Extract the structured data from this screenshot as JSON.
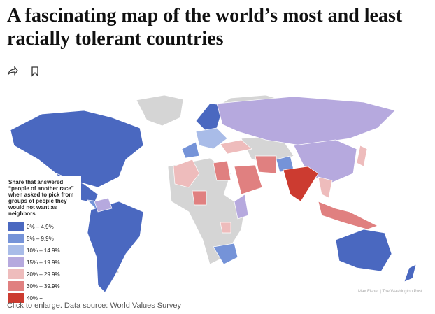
{
  "header": {
    "title": "A fascinating map of the world’s most and least racially tolerant countries"
  },
  "legend": {
    "title": "Share that answered “people of another race” when asked to pick from groups of people they would not want as neighbors",
    "items": [
      {
        "label": "0% – 4.9%",
        "color": "#4a68c0"
      },
      {
        "label": "5% – 9.9%",
        "color": "#7593d8"
      },
      {
        "label": "10% – 14.9%",
        "color": "#a9bce8"
      },
      {
        "label": "15% – 19.9%",
        "color": "#b6a9de"
      },
      {
        "label": "20% – 29.9%",
        "color": "#eebcbc"
      },
      {
        "label": "30% – 39.9%",
        "color": "#e08080"
      },
      {
        "label": "40% +",
        "color": "#cc3b30"
      }
    ]
  },
  "credit": "Max Fisher | The Washington Post",
  "caption": "Click to enlarge. Data source: World Values Survey"
}
